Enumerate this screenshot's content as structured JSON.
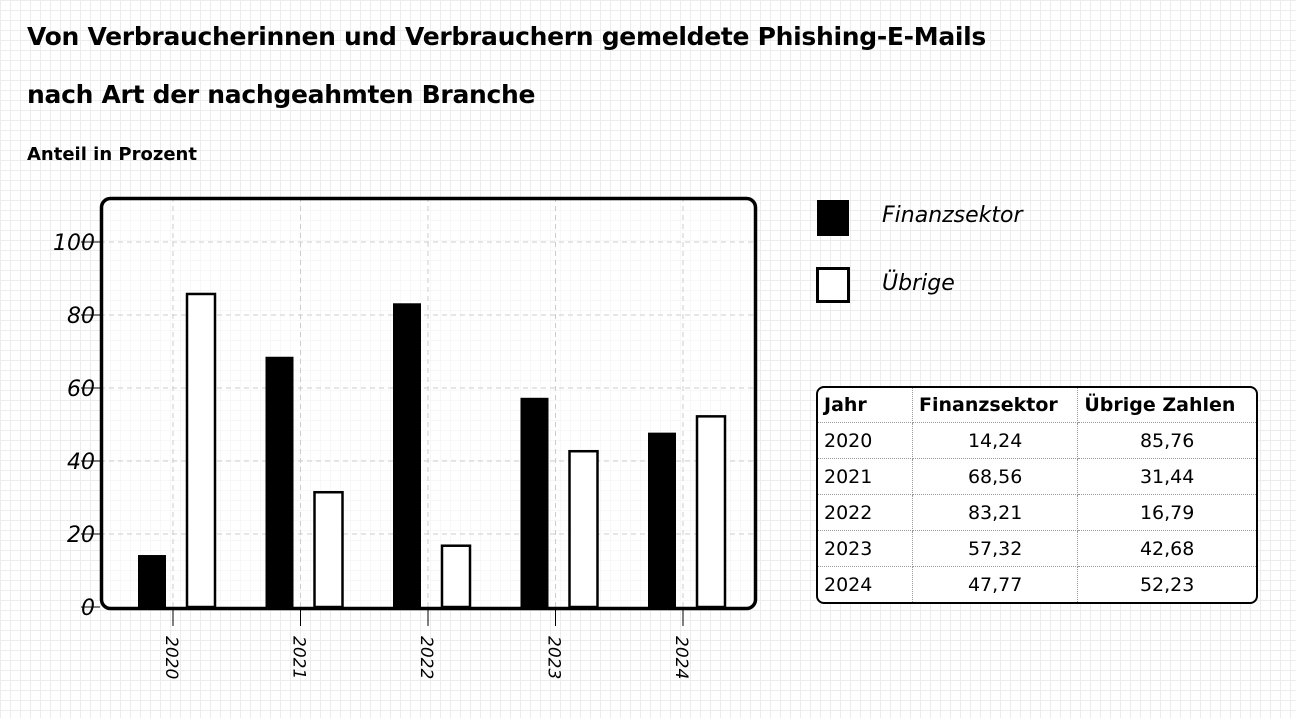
{
  "title_line1": "Von Verbraucherinnen und Verbrauchern gemeldete Phishing-E-Mails",
  "title_line2": "nach Art der nachgeahmten Branche",
  "colors": {
    "Finanzsektor": "#000000",
    "Übrige": "#ffffff"
  },
  "chart_data": {
    "type": "bar",
    "title": "Von Verbraucherinnen und Verbrauchern gemeldete Phishing-E-Mails nach Art der nachgeahmten Branche",
    "ylabel": "Anteil in Prozent",
    "xlabel": "",
    "ylim": [
      0,
      100
    ],
    "yticks": [
      "0",
      "20",
      "40",
      "60",
      "80",
      "100"
    ],
    "grid": true,
    "legend_position": "right",
    "categories": [
      "2020",
      "2021",
      "2022",
      "2023",
      "2024"
    ],
    "series": [
      {
        "name": "Finanzsektor",
        "values": [
          14.24,
          68.56,
          83.21,
          57.32,
          47.77
        ]
      },
      {
        "name": "Übrige",
        "values": [
          85.76,
          31.44,
          16.79,
          42.68,
          52.23
        ]
      }
    ]
  },
  "table": {
    "headers": [
      "Jahr",
      "Finanzsektor",
      "Übrige Zahlen"
    ],
    "rows": [
      [
        "2020",
        "14,24",
        "85,76"
      ],
      [
        "2021",
        "68,56",
        "31,44"
      ],
      [
        "2022",
        "83,21",
        "16,79"
      ],
      [
        "2023",
        "57,32",
        "42,68"
      ],
      [
        "2024",
        "47,77",
        "52,23"
      ]
    ]
  }
}
